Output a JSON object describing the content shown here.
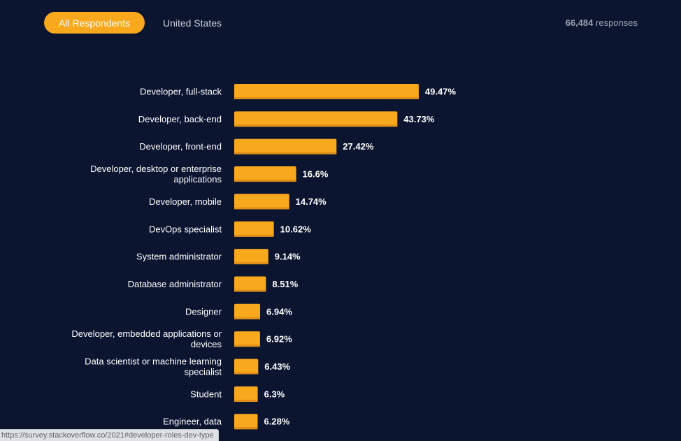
{
  "tabs": [
    {
      "label": "All Respondents",
      "active": true
    },
    {
      "label": "United States",
      "active": false
    }
  ],
  "responses": {
    "count": "66,484",
    "suffix": "responses"
  },
  "status_url": "https://survey.stackoverflow.co/2021#developer-roles-dev-type",
  "colors": {
    "background": "#0c1530",
    "bar": "#f8a81c",
    "bar_shadow": "#e0901a",
    "active_tab": "#f8a81c"
  },
  "chart_data": {
    "type": "bar",
    "orientation": "horizontal",
    "categories": [
      "Developer, full-stack",
      "Developer, back-end",
      "Developer, front-end",
      "Developer, desktop or enterprise applications",
      "Developer, mobile",
      "DevOps specialist",
      "System administrator",
      "Database administrator",
      "Designer",
      "Developer, embedded applications or devices",
      "Data scientist or machine learning specialist",
      "Student",
      "Engineer, data"
    ],
    "label_lines": [
      [
        "Developer, full-stack"
      ],
      [
        "Developer, back-end"
      ],
      [
        "Developer, front-end"
      ],
      [
        "Developer, desktop or enterprise",
        "applications"
      ],
      [
        "Developer, mobile"
      ],
      [
        "DevOps specialist"
      ],
      [
        "System administrator"
      ],
      [
        "Database administrator"
      ],
      [
        "Designer"
      ],
      [
        "Developer, embedded applications or",
        "devices"
      ],
      [
        "Data scientist or machine learning",
        "specialist"
      ],
      [
        "Student"
      ],
      [
        "Engineer, data"
      ]
    ],
    "values": [
      49.47,
      43.73,
      27.42,
      16.6,
      14.74,
      10.62,
      9.14,
      8.51,
      6.94,
      6.92,
      6.43,
      6.3,
      6.28
    ],
    "value_labels": [
      "49.47%",
      "43.73%",
      "27.42%",
      "16.6%",
      "14.74%",
      "10.62%",
      "9.14%",
      "8.51%",
      "6.94%",
      "6.92%",
      "6.43%",
      "6.3%",
      "6.28%"
    ],
    "unit": "%",
    "xlim": [
      0,
      100
    ],
    "grid": false,
    "legend": "none"
  }
}
